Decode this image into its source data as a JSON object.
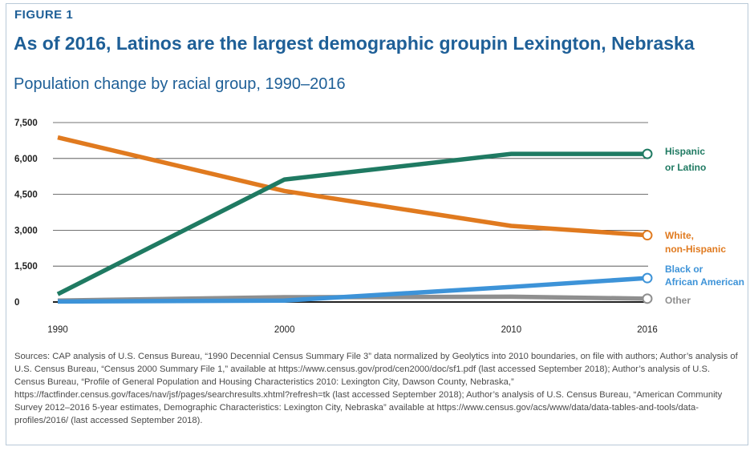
{
  "figure_label": "FIGURE 1",
  "sources": "Sources: CAP analysis of U.S. Census Bureau, “1990 Decennial Census Summary File 3” data normalized by Geolytics into 2010 boundaries, on file with authors; Author’s analysis of U.S. Census Bureau, “Census 2000 Summary File 1,” available at https://www.census.gov/prod/cen2000/doc/sf1.pdf (last accessed September 2018); Author’s analysis of U.S. Census Bureau, “Profile of General Population and Housing Characteristics 2010: Lexington City, Dawson County, Nebraska,” https://factfinder.census.gov/faces/nav/jsf/pages/searchresults.xhtml?refresh=tk (last accessed September 2018); Author’s analysis of U.S. Census Bureau, “American Community Survey 2012–2016 5-year estimates, Demographic Characteristics: Lexington City, Nebraska” available at https://www.census.gov/acs/www/data/data-tables-and-tools/data-profiles/2016/ (last accessed September 2018).",
  "chart_data": {
    "type": "line",
    "title": "As of 2016, Latinos are the largest demographic groupin Lexington, Nebraska",
    "subtitle": "Population change by racial group, 1990–2016",
    "x": [
      1990,
      2000,
      2010,
      2016
    ],
    "x_tick_labels": [
      "1990",
      "2000",
      "2010",
      "2016"
    ],
    "ylim": [
      0,
      7500
    ],
    "y_ticks": [
      0,
      1500,
      3000,
      4500,
      6000,
      7500
    ],
    "y_tick_labels": [
      "0",
      "1,500",
      "3,000",
      "4,500",
      "6,000",
      "7,500"
    ],
    "grid": true,
    "legend": "direct labels at right end of lines",
    "series": [
      {
        "name": "Hispanic or Latino",
        "label_lines": [
          "Hispanic",
          "or Latino"
        ],
        "color": "#1f7a62",
        "values": [
          330,
          5120,
          6190,
          6190
        ]
      },
      {
        "name": "White, non-Hispanic",
        "label_lines": [
          "White,",
          "non-Hispanic"
        ],
        "color": "#e07a1f",
        "values": [
          6880,
          4640,
          3180,
          2790
        ]
      },
      {
        "name": "Black or African American",
        "label_lines": [
          "Black or",
          "African American"
        ],
        "color": "#3d93d8",
        "values": [
          20,
          60,
          630,
          1000
        ]
      },
      {
        "name": "Other",
        "label_lines": [
          "Other"
        ],
        "color": "#8f8f8f",
        "values": [
          60,
          200,
          220,
          140
        ]
      }
    ]
  }
}
